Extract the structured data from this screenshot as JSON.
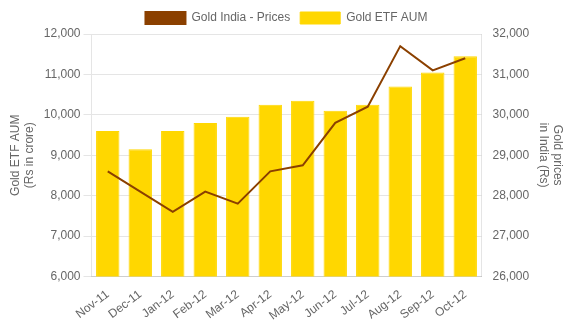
{
  "chart_data": {
    "type": "bar",
    "categories": [
      "Nov-11",
      "Dec-11",
      "Jan-12",
      "Feb-12",
      "Mar-12",
      "Apr-12",
      "May-12",
      "Jun-12",
      "Jul-12",
      "Aug-12",
      "Sep-12",
      "Oct-12"
    ],
    "series": [
      {
        "name": "Gold ETF AUM",
        "type": "bar",
        "color": "#FFD700",
        "axis": "y",
        "values": [
          9600,
          9150,
          9600,
          9800,
          9950,
          10250,
          10350,
          10100,
          10250,
          10700,
          11050,
          11450
        ]
      },
      {
        "name": "Gold India - Prices",
        "type": "line",
        "color": "#8B4000",
        "axis": "y2",
        "values": [
          28600,
          28100,
          27600,
          28100,
          27800,
          28600,
          28750,
          29800,
          30200,
          31700,
          31100,
          31400
        ]
      }
    ],
    "ylabel": "Gold ETF AUM\n(Rs in crore)",
    "y2label": "Gold prices\nin India (Rs)",
    "ylim": [
      6000,
      12000
    ],
    "yticks": [
      {
        "value": 6000,
        "label": "6,000"
      },
      {
        "value": 7000,
        "label": "7,000"
      },
      {
        "value": 8000,
        "label": "8,000"
      },
      {
        "value": 9000,
        "label": "9,000"
      },
      {
        "value": 10000,
        "label": "10,000"
      },
      {
        "value": 11000,
        "label": "11,000"
      },
      {
        "value": 12000,
        "label": "12,000"
      }
    ],
    "y2lim": [
      26000,
      32000
    ],
    "y2ticks": [
      {
        "value": 26000,
        "label": "26,000"
      },
      {
        "value": 27000,
        "label": "27,000"
      },
      {
        "value": 28000,
        "label": "28,000"
      },
      {
        "value": 29000,
        "label": "29,000"
      },
      {
        "value": 30000,
        "label": "30,000"
      },
      {
        "value": 31000,
        "label": "31,000"
      },
      {
        "value": 32000,
        "label": "32,000"
      }
    ],
    "grid": true,
    "legend": "top"
  }
}
